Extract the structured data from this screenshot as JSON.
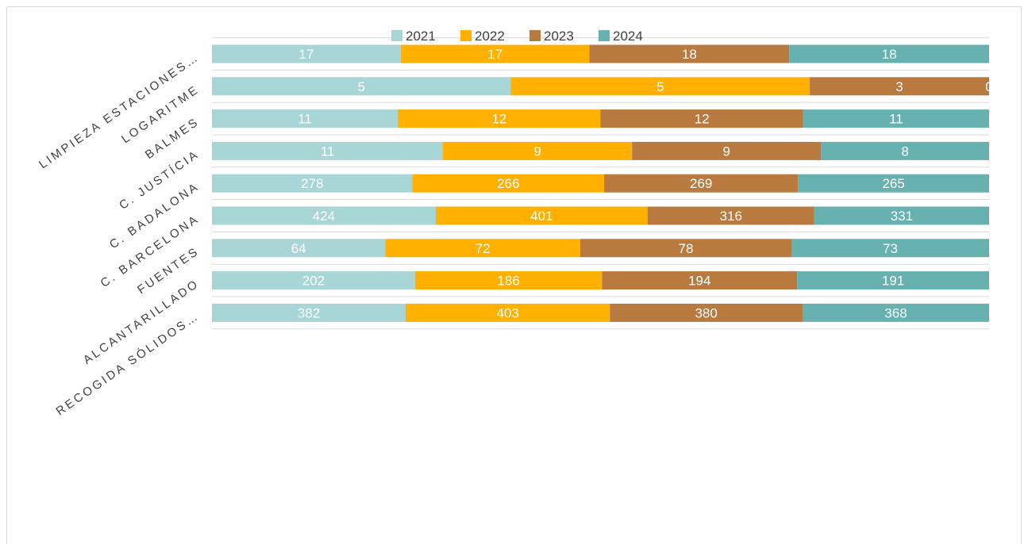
{
  "chart_data": {
    "type": "bar",
    "orientation": "horizontal",
    "stacking": "percent",
    "title": "",
    "categories": [
      "LIMPIEZA ESTACIONES…",
      "LOGARITME",
      "BALMES",
      "C. JUSTÍCIA",
      "C. BADALONA",
      "C. BARCELONA",
      "FUENTES",
      "ALCANTARILLADO",
      "RECOGIDA SÓLIDOS…"
    ],
    "series": [
      {
        "name": "2021",
        "color": "#A8D5D5",
        "values": [
          17,
          5,
          11,
          11,
          278,
          424,
          64,
          202,
          382
        ]
      },
      {
        "name": "2022",
        "color": "#FFB000",
        "values": [
          17,
          5,
          12,
          9,
          266,
          401,
          72,
          186,
          403
        ]
      },
      {
        "name": "2023",
        "color": "#B87A3E",
        "values": [
          18,
          3,
          12,
          9,
          269,
          316,
          78,
          194,
          380
        ]
      },
      {
        "name": "2024",
        "color": "#67B1B1",
        "values": [
          18,
          0,
          11,
          8,
          265,
          331,
          73,
          191,
          368
        ]
      }
    ],
    "legend_position": "top",
    "grid": true,
    "data_labels": true
  }
}
